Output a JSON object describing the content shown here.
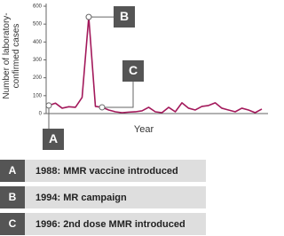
{
  "chart_data": {
    "type": "line",
    "y_label": "Number of laboratory-confirmed cases",
    "x_label": "Year",
    "categories": [
      null,
      null,
      null,
      null,
      null,
      null,
      null,
      null,
      null,
      null,
      null,
      null,
      null,
      null,
      null,
      null,
      null,
      null,
      null,
      null,
      null,
      null,
      null,
      null,
      null,
      null,
      null,
      null,
      null,
      null,
      null,
      null,
      null
    ],
    "series": [
      {
        "color": "#a3195b",
        "values": [
          45,
          58,
          30,
          38,
          35,
          90,
          540,
          40,
          35,
          20,
          10,
          5,
          8,
          10,
          15,
          35,
          10,
          5,
          35,
          10,
          60,
          30,
          20,
          40,
          45,
          60,
          30,
          20,
          10,
          30,
          20,
          5,
          25
        ]
      }
    ],
    "ylim": [
      0,
      600
    ],
    "yticks": [
      0,
      100,
      200,
      300,
      400,
      500,
      600
    ],
    "annotations": [
      {
        "label": "A",
        "text": "1988: MMR vaccine introduced",
        "point": 0
      },
      {
        "label": "B",
        "text": "1994: MR campaign",
        "point": 6
      },
      {
        "label": "C",
        "text": "1996: 2nd dose MMR introduced",
        "point": 8
      }
    ]
  }
}
